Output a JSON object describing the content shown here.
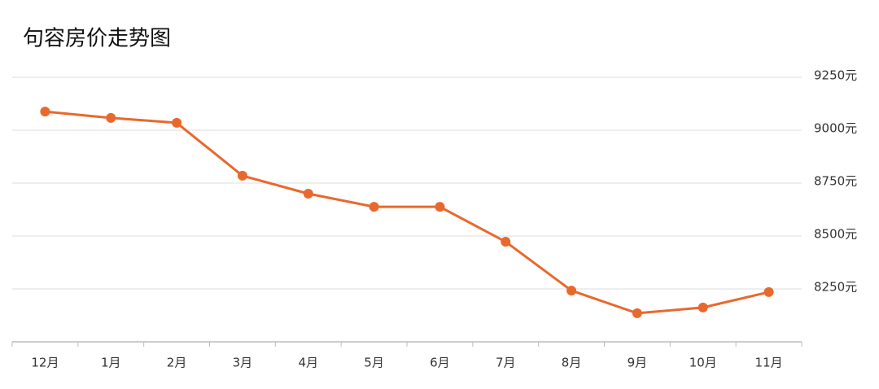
{
  "chart_data": {
    "type": "line",
    "title": "句容房价走势图",
    "categories": [
      "12月",
      "1月",
      "2月",
      "3月",
      "4月",
      "5月",
      "6月",
      "7月",
      "8月",
      "9月",
      "10月",
      "11月"
    ],
    "values": [
      9088,
      9058,
      9035,
      8785,
      8700,
      8638,
      8638,
      8473,
      8242,
      8135,
      8162,
      8235
    ],
    "color": "#e8692d",
    "ylim": [
      8000,
      9250
    ],
    "yticks": [
      {
        "value": 8250,
        "label": "8250元"
      },
      {
        "value": 8500,
        "label": "8500元"
      },
      {
        "value": 8750,
        "label": "8750元"
      },
      {
        "value": 9000,
        "label": "9000元"
      },
      {
        "value": 9250,
        "label": "9250元"
      }
    ],
    "grid": true
  }
}
